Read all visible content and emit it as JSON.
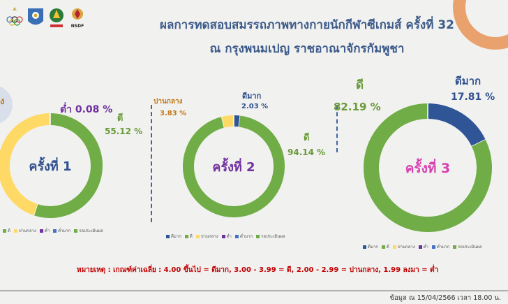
{
  "header": {
    "title_line1": "ผลการทดสอบสมรรถภาพทางกายนักกีฬาซีเกมส์ ครั้งที่ 32",
    "title_line2": "ณ กรุงพนมเปญ ราชอาณาจักรกัมพูชา",
    "logo_text": "NSDF"
  },
  "colors": {
    "excellent": "#2f5597",
    "good": "#70ad47",
    "fair": "#ffd966",
    "low": "#7030a0",
    "very_low": "#4472c4",
    "text_good": "#6a9a3a",
    "text_fair": "#c07818",
    "text_low": "#7030a0",
    "text_exc": "#2f4f8f",
    "accent_orange": "#f0a06a"
  },
  "legend_labels": [
    "ดีมาก",
    "ดี",
    "ปานกลาง",
    "ต่ำ",
    "ต่ำมาก",
    "รอประเมินผล"
  ],
  "chart_data": [
    {
      "type": "pie",
      "center_label": "ครั้งที่ 1",
      "categories": [
        "ดี",
        "ปานกลาง",
        "ต่ำ"
      ],
      "values": [
        55.12,
        44.8,
        0.08
      ],
      "labels": {
        "low_word": "ต่ำ",
        "low_value": "0.08 %",
        "good_word": "ดี",
        "good_value": "55.12 %",
        "fair_partial": "ง"
      },
      "legend": [
        "ดี",
        "ปานกลาง",
        "ต่ำ",
        "ต่ำมาก",
        "รอประเมินผล"
      ]
    },
    {
      "type": "pie",
      "center_label": "ครั้งที่ 2",
      "categories": [
        "ดีมาก",
        "ดี",
        "ปานกลาง"
      ],
      "values": [
        2.03,
        94.14,
        3.83
      ],
      "labels": {
        "fair_word": "ปานกลาง",
        "fair_value": "3.83 %",
        "exc_word": "ดีมาก",
        "exc_value": "2.03 %",
        "good_word": "ดี",
        "good_value": "94.14 %"
      },
      "legend": [
        "ดีมาก",
        "ดี",
        "ปานกลาง",
        "ต่ำ",
        "ต่ำมาก",
        "รอประเมินผล"
      ]
    },
    {
      "type": "pie",
      "center_label": "ครั้งที่ 3",
      "categories": [
        "ดีมาก",
        "ดี"
      ],
      "values": [
        17.81,
        82.19
      ],
      "labels": {
        "good_word": "ดี",
        "good_value": "82.19 %",
        "exc_word": "ดีมาก",
        "exc_value": "17.81 %"
      },
      "legend": [
        "ดีมาก",
        "ดี",
        "ปานกลาง",
        "ต่ำ",
        "ต่ำมาก",
        "รอประเมินผล"
      ]
    }
  ],
  "footer": {
    "note": "หมายเหตุ :    เกณฑ์ค่าเฉลี่ย :  4.00 ขึ้นไป = ดีมาก, 3.00 - 3.99 = ดี, 2.00 - 2.99 = ปานกลาง, 1.99 ลงมา = ต่ำ",
    "source": "ข้อมูล ณ 15/04/2566 เวลา 18.00 น."
  }
}
